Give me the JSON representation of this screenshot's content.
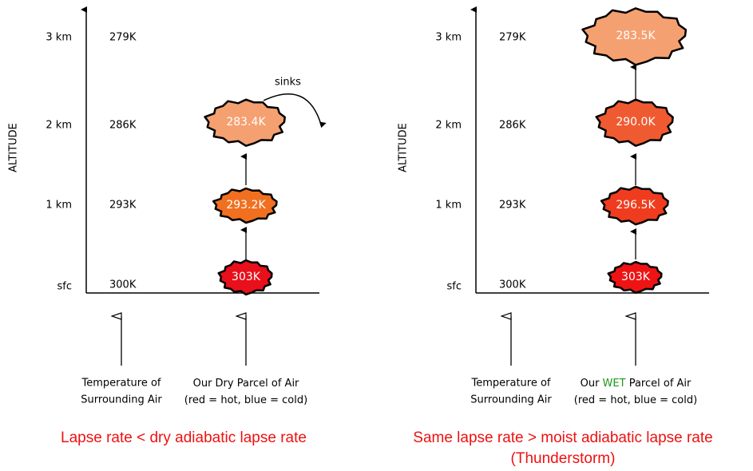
{
  "panels": [
    {
      "axis_title": "ALTITUDE",
      "levels": [
        {
          "altitude": "3 km",
          "temperature": "279K"
        },
        {
          "altitude": "2 km",
          "temperature": "286K"
        },
        {
          "altitude": "1 km",
          "temperature": "293K"
        },
        {
          "altitude": "sfc",
          "temperature": "300K"
        }
      ],
      "parcels": [
        "303K",
        "293.2K",
        "283.4K"
      ],
      "annotation": "sinks",
      "surrounding_caption": [
        "Temperature of",
        "Surrounding Air"
      ],
      "parcel_caption": [
        [
          "Our Dry Parcel of Air"
        ],
        [
          "(red = hot, blue = cold)"
        ]
      ],
      "title": [
        "Lapse rate < dry adiabatic lapse rate"
      ]
    },
    {
      "axis_title": "ALTITUDE",
      "levels": [
        {
          "altitude": "3 km",
          "temperature": "279K"
        },
        {
          "altitude": "2 km",
          "temperature": "286K"
        },
        {
          "altitude": "1 km",
          "temperature": "293K"
        },
        {
          "altitude": "sfc",
          "temperature": "300K"
        }
      ],
      "parcels": [
        "303K",
        "296.5K",
        "290.0K",
        "283.5K"
      ],
      "surrounding_caption": [
        "Temperature of",
        "Surrounding Air"
      ],
      "parcel_caption": [
        [
          "Our ",
          "WET",
          " Parcel of Air"
        ],
        [
          "(red = hot, blue = cold)"
        ]
      ],
      "title": [
        "Same lapse rate > moist adiabatic lapse rate",
        "(Thunderstorm)"
      ]
    }
  ]
}
